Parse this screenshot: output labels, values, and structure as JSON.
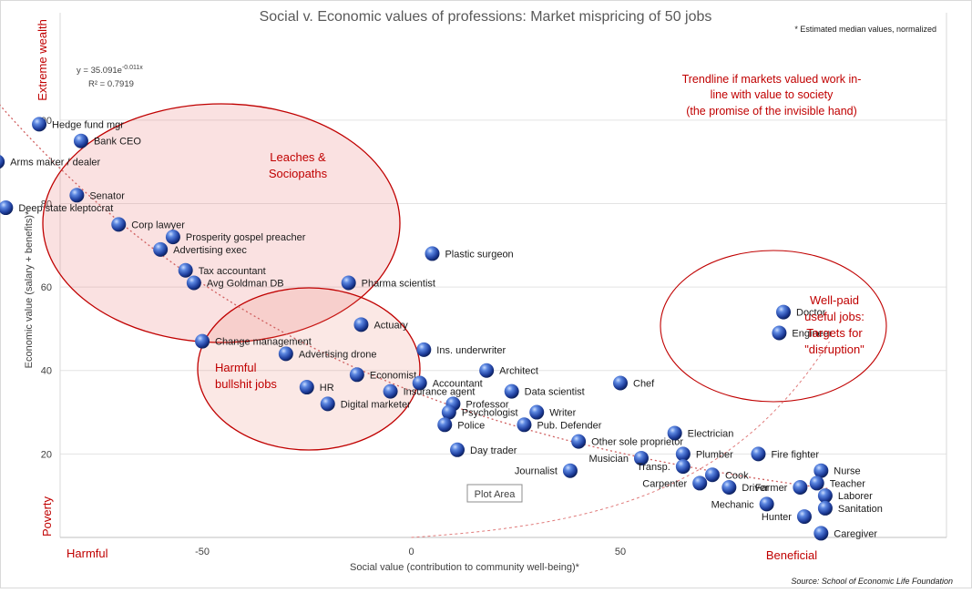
{
  "chart_data": {
    "type": "scatter",
    "title": "Social v. Economic values of professions: Market mispricing of 50 jobs",
    "note": "* Estimated median values, normalized",
    "xlabel": "Social value (contribution to community well-being)*",
    "ylabel": "Economic value (salary + benefits)*",
    "xlim": [
      -84,
      128
    ],
    "ylim": [
      0,
      110
    ],
    "x_ticks": [
      -50,
      0,
      50
    ],
    "y_ticks": [
      20,
      40,
      60,
      80,
      100
    ],
    "x_end_labels": {
      "left": "Harmful",
      "right": "Beneficial"
    },
    "y_end_labels": {
      "bottom": "Poverty",
      "top": "Extreme wealth"
    },
    "grid": "horizontal",
    "source": "Source: School of Economic Life Foundation",
    "trendline": {
      "equation": "y = 35.091e",
      "exponent": "-0.011x",
      "r2": "R² = 0.7919",
      "a": 35.091,
      "b": -0.011,
      "style": "dotted",
      "color": "#d06060"
    },
    "ideal_line_label": "Trendline if markets valued work in-line with value to society (the promise of the invisible hand)",
    "ideal_line_label_lines": [
      "Trendline if markets valued work in-",
      "line with value to society",
      "(the promise of the invisible hand)"
    ],
    "groups": [
      {
        "name": "Leaches & Sociopaths",
        "label_lines": [
          "Leaches &",
          "Sociopaths"
        ]
      },
      {
        "name": "Harmful bullshit jobs",
        "label_lines": [
          "Harmful",
          "bullshit jobs"
        ]
      },
      {
        "name": "Well-paid useful jobs: Targets for \"disruption\"",
        "label_lines": [
          "Well-paid",
          "useful jobs:",
          "Targets for",
          "\"disruption\""
        ]
      }
    ],
    "plot_area_tag": "Plot Area",
    "points": [
      {
        "name": "Hedge fund mgr",
        "x": -89,
        "y": 99
      },
      {
        "name": "Bank CEO",
        "x": -79,
        "y": 95
      },
      {
        "name": "Arms maker / dealer",
        "x": -99,
        "y": 90
      },
      {
        "name": "Senator",
        "x": -80,
        "y": 82
      },
      {
        "name": "Deep state kleptocrat",
        "x": -97,
        "y": 79
      },
      {
        "name": "Corp lawyer",
        "x": -70,
        "y": 75
      },
      {
        "name": "Prosperity gospel preacher",
        "x": -57,
        "y": 72
      },
      {
        "name": "Advertising exec",
        "x": -60,
        "y": 69
      },
      {
        "name": "Tax accountant",
        "x": -54,
        "y": 64
      },
      {
        "name": "Avg Goldman DB",
        "x": -52,
        "y": 61
      },
      {
        "name": "Plastic surgeon",
        "x": 5,
        "y": 68
      },
      {
        "name": "Pharma scientist",
        "x": -15,
        "y": 61
      },
      {
        "name": "Actuary",
        "x": -12,
        "y": 51
      },
      {
        "name": "Change management",
        "x": -50,
        "y": 47
      },
      {
        "name": "Advertising drone",
        "x": -30,
        "y": 44
      },
      {
        "name": "Ins. underwriter",
        "x": 3,
        "y": 45
      },
      {
        "name": "Economist",
        "x": -13,
        "y": 39
      },
      {
        "name": "HR",
        "x": -25,
        "y": 36
      },
      {
        "name": "Accountant",
        "x": 2,
        "y": 37
      },
      {
        "name": "Insurance agent",
        "x": -5,
        "y": 35
      },
      {
        "name": "Digital marketer",
        "x": -20,
        "y": 32
      },
      {
        "name": "Architect",
        "x": 18,
        "y": 40
      },
      {
        "name": "Data scientist",
        "x": 24,
        "y": 35
      },
      {
        "name": "Chef",
        "x": 50,
        "y": 37
      },
      {
        "name": "Professor",
        "x": 10,
        "y": 32
      },
      {
        "name": "Psychologist",
        "x": 9,
        "y": 30
      },
      {
        "name": "Writer",
        "x": 30,
        "y": 30
      },
      {
        "name": "Police",
        "x": 8,
        "y": 27
      },
      {
        "name": "Pub. Defender",
        "x": 27,
        "y": 27
      },
      {
        "name": "Day trader",
        "x": 11,
        "y": 21
      },
      {
        "name": "Other sole proprietor",
        "x": 40,
        "y": 23
      },
      {
        "name": "Electrician",
        "x": 63,
        "y": 25
      },
      {
        "name": "Plumber",
        "x": 65,
        "y": 20
      },
      {
        "name": "Fire fighter",
        "x": 83,
        "y": 20
      },
      {
        "name": "Musician",
        "x": 55,
        "y": 19
      },
      {
        "name": "Journalist",
        "x": 38,
        "y": 16
      },
      {
        "name": "Transp.",
        "x": 65,
        "y": 17
      },
      {
        "name": "Cook",
        "x": 72,
        "y": 15
      },
      {
        "name": "Carpenter",
        "x": 69,
        "y": 13
      },
      {
        "name": "Driver",
        "x": 76,
        "y": 12
      },
      {
        "name": "Doctor",
        "x": 89,
        "y": 54
      },
      {
        "name": "Engineer",
        "x": 88,
        "y": 49
      },
      {
        "name": "Nurse",
        "x": 98,
        "y": 16
      },
      {
        "name": "Teacher",
        "x": 97,
        "y": 13
      },
      {
        "name": "Laborer",
        "x": 99,
        "y": 10
      },
      {
        "name": "Sanitation",
        "x": 99,
        "y": 7
      },
      {
        "name": "Mechanic",
        "x": 85,
        "y": 8
      },
      {
        "name": "Farmer",
        "x": 93,
        "y": 12
      },
      {
        "name": "Hunter",
        "x": 94,
        "y": 5
      },
      {
        "name": "Caregiver",
        "x": 98,
        "y": 1
      }
    ]
  }
}
